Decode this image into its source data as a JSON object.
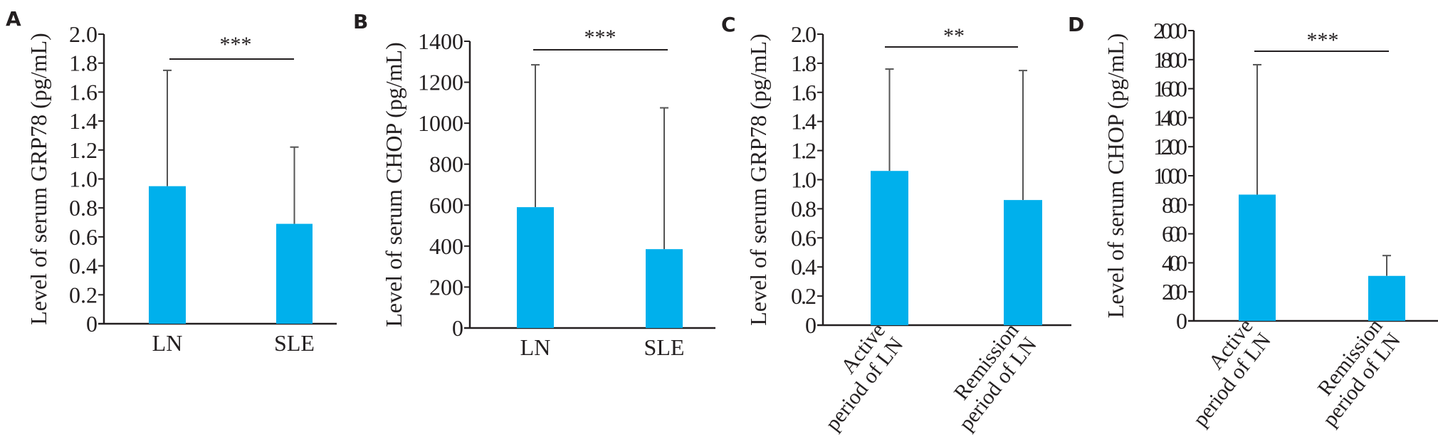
{
  "colors": {
    "bar": "#00b0ec",
    "axis": "#231f20",
    "error_bar": "#555555"
  },
  "chart_data": [
    {
      "panel": "A",
      "type": "bar",
      "ylabel": "Level of serum GRP78 (pg/mL)",
      "ylim": [
        0,
        2.0
      ],
      "yticks": [
        "0",
        "0.2",
        "0.4",
        "0.6",
        "0.8",
        "1.0",
        "1.2",
        "1.4",
        "1.6",
        "1.8",
        "2.0"
      ],
      "categories": [
        [
          "LN"
        ],
        [
          "SLE"
        ]
      ],
      "values": [
        0.95,
        0.69
      ],
      "error_upper": [
        1.75,
        1.22
      ],
      "significance": "***",
      "grid": false
    },
    {
      "panel": "B",
      "type": "bar",
      "ylabel": "Level of serum CHOP (pg/mL)",
      "ylim": [
        0,
        1400
      ],
      "yticks": [
        "0",
        "200",
        "400",
        "600",
        "800",
        "1000",
        "1200",
        "1400"
      ],
      "categories": [
        [
          "LN"
        ],
        [
          "SLE"
        ]
      ],
      "values": [
        590,
        385
      ],
      "error_upper": [
        1285,
        1075
      ],
      "significance": "***",
      "grid": false
    },
    {
      "panel": "C",
      "type": "bar",
      "ylabel": "Level of serum GRP78 (pg/mL)",
      "ylim": [
        0,
        2.0
      ],
      "yticks": [
        "0",
        "0.2",
        "0.4",
        "0.6",
        "0.8",
        "1.0",
        "1.2",
        "1.4",
        "1.6",
        "1.8",
        "2.0"
      ],
      "categories": [
        [
          "Active",
          "period of LN"
        ],
        [
          "Remission",
          "period of LN"
        ]
      ],
      "values": [
        1.06,
        0.86
      ],
      "error_upper": [
        1.76,
        1.75
      ],
      "significance": "**",
      "grid": false
    },
    {
      "panel": "D",
      "type": "bar",
      "ylabel": "Level of serum CHOP (pg/mL)",
      "ylim": [
        0,
        2000
      ],
      "yticks": [
        "0",
        "200",
        "400",
        "600",
        "800",
        "1000",
        "1200",
        "1400",
        "1600",
        "1800",
        "2000"
      ],
      "categories": [
        [
          "Active",
          "period of LN"
        ],
        [
          "Remission",
          "period of LN"
        ]
      ],
      "values": [
        870,
        310
      ],
      "error_upper": [
        1765,
        450
      ],
      "significance": "***",
      "grid": false
    }
  ]
}
